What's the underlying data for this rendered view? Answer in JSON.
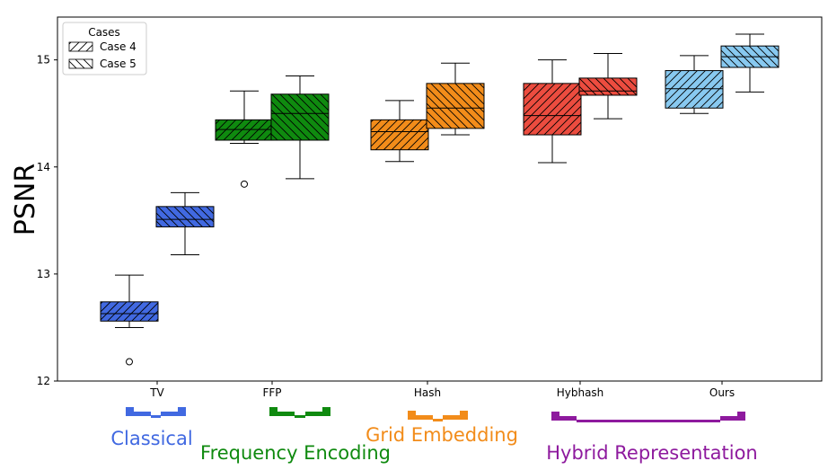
{
  "chart_data": {
    "type": "box",
    "ylabel": "PSNR",
    "xlabel": "",
    "ylim": [
      12,
      15.4
    ],
    "yticks": [
      12,
      13,
      14,
      15
    ],
    "grid": false,
    "legend": {
      "title": "Cases",
      "placement": "top-left",
      "entries": [
        {
          "label": "Case 4",
          "hatch": "forward-diagonal"
        },
        {
          "label": "Case 5",
          "hatch": "back-diagonal"
        }
      ]
    },
    "categories": [
      "TV",
      "FFP",
      "Hash",
      "Hybhash",
      "Ours"
    ],
    "colors": {
      "TV": "#4169e1",
      "FFP": "#0f8a0f",
      "Hash": "#f28c1a",
      "Hybhash": "#ec4c3f",
      "Ours": "#88c9f0"
    },
    "series": [
      {
        "name": "Case 4",
        "boxes": [
          {
            "category": "TV",
            "whislo": 12.5,
            "q1": 12.56,
            "med": 12.63,
            "q3": 12.74,
            "whishi": 12.99,
            "fliers": [
              12.18
            ]
          },
          {
            "category": "FFP",
            "whislo": 14.22,
            "q1": 14.25,
            "med": 14.35,
            "q3": 14.44,
            "whishi": 14.71,
            "fliers": [
              13.84
            ]
          },
          {
            "category": "Hash",
            "whislo": 14.05,
            "q1": 14.16,
            "med": 14.33,
            "q3": 14.44,
            "whishi": 14.62,
            "fliers": []
          },
          {
            "category": "Hybhash",
            "whislo": 14.04,
            "q1": 14.3,
            "med": 14.48,
            "q3": 14.78,
            "whishi": 15.0,
            "fliers": []
          },
          {
            "category": "Ours",
            "whislo": 14.5,
            "q1": 14.55,
            "med": 14.73,
            "q3": 14.9,
            "whishi": 15.04,
            "fliers": []
          }
        ]
      },
      {
        "name": "Case 5",
        "boxes": [
          {
            "category": "TV",
            "whislo": 13.18,
            "q1": 13.44,
            "med": 13.51,
            "q3": 13.63,
            "whishi": 13.76,
            "fliers": []
          },
          {
            "category": "FFP",
            "whislo": 13.89,
            "q1": 14.25,
            "med": 14.5,
            "q3": 14.68,
            "whishi": 14.85,
            "fliers": []
          },
          {
            "category": "Hash",
            "whislo": 14.3,
            "q1": 14.36,
            "med": 14.55,
            "q3": 14.78,
            "whishi": 14.97,
            "fliers": []
          },
          {
            "category": "Hybhash",
            "whislo": 14.45,
            "q1": 14.67,
            "med": 14.71,
            "q3": 14.83,
            "whishi": 15.06,
            "fliers": []
          },
          {
            "category": "Ours",
            "whislo": 14.7,
            "q1": 14.93,
            "med": 15.03,
            "q3": 15.13,
            "whishi": 15.24,
            "fliers": []
          }
        ]
      }
    ],
    "groups": [
      {
        "label": "Classical",
        "color": "#4169e1",
        "members": [
          "TV"
        ]
      },
      {
        "label": "Frequency Encoding",
        "color": "#0f8a0f",
        "members": [
          "FFP"
        ]
      },
      {
        "label": "Grid Embedding",
        "color": "#f28c1a",
        "members": [
          "Hash"
        ]
      },
      {
        "label": "Hybrid Representation",
        "color": "#8e1a9e",
        "members": [
          "Hybhash",
          "Ours"
        ]
      }
    ]
  }
}
